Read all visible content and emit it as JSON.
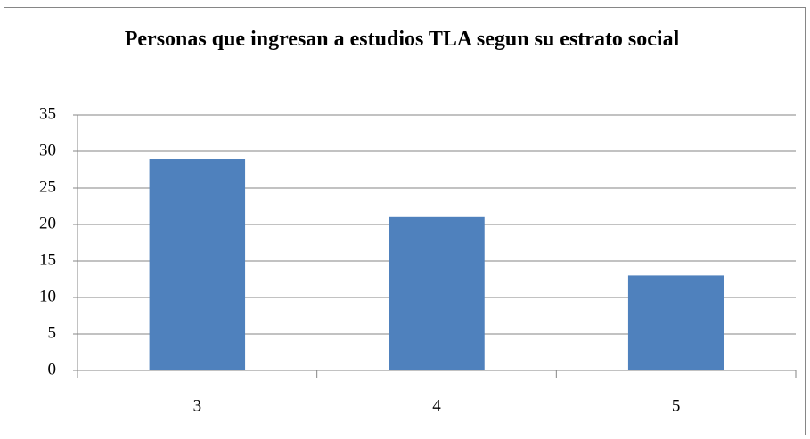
{
  "chart_data": {
    "type": "bar",
    "title": "Personas que ingresan a estudios TLA segun su estrato social",
    "categories": [
      "3",
      "4",
      "5"
    ],
    "values": [
      29,
      21,
      13
    ],
    "color": "#4f81bd",
    "ylim": [
      0,
      35
    ],
    "yticks": [
      0,
      5,
      10,
      15,
      20,
      25,
      30,
      35
    ],
    "grid": true
  }
}
